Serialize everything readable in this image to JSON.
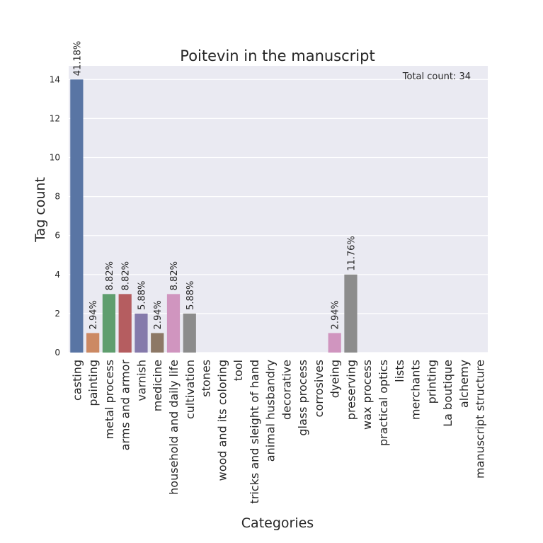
{
  "chart_data": {
    "type": "bar",
    "title": "Poitevin in the manuscript",
    "xlabel": "Categories",
    "ylabel": "Tag count",
    "annotation": "Total count: 34",
    "ylim": [
      0,
      14.7
    ],
    "yticks": [
      0,
      2,
      4,
      6,
      8,
      10,
      12,
      14
    ],
    "grid": true,
    "categories": [
      "casting",
      "painting",
      "metal process",
      "arms and armor",
      "varnish",
      "medicine",
      "household and daily life",
      "cultivation",
      "stones",
      "wood and its coloring",
      "tool",
      "tricks and sleight of hand",
      "animal husbandry",
      "decorative",
      "glass process",
      "corrosives",
      "dyeing",
      "preserving",
      "wax process",
      "practical optics",
      "lists",
      "merchants",
      "printing",
      "La boutique",
      "alchemy",
      "manuscript structure"
    ],
    "values": [
      14,
      1,
      3,
      3,
      2,
      1,
      3,
      2,
      0,
      0,
      0,
      0,
      0,
      0,
      0,
      0,
      1,
      4,
      0,
      0,
      0,
      0,
      0,
      0,
      0,
      0
    ],
    "labels": [
      "41.18%",
      "2.94%",
      "8.82%",
      "8.82%",
      "5.88%",
      "2.94%",
      "8.82%",
      "5.88%",
      "",
      "",
      "",
      "",
      "",
      "",
      "",
      "",
      "2.94%",
      "11.76%",
      "",
      "",
      "",
      "",
      "",
      "",
      "",
      ""
    ],
    "colors": [
      "#5975a4",
      "#cc8963",
      "#5f9e6e",
      "#b55d60",
      "#857aab",
      "#8d7866",
      "#d095bf",
      "#8c8c8c",
      "#c1b37f",
      "#6bb3c8",
      "#5975a4",
      "#cc8963",
      "#5f9e6e",
      "#b55d60",
      "#857aab",
      "#8d7866",
      "#d095bf",
      "#8c8c8c",
      "#c1b37f",
      "#6bb3c8",
      "#5975a4",
      "#cc8963",
      "#5f9e6e",
      "#b55d60",
      "#857aab",
      "#8d7866"
    ],
    "background_color": "#eaeaf2",
    "grid_color": "#ffffff"
  }
}
